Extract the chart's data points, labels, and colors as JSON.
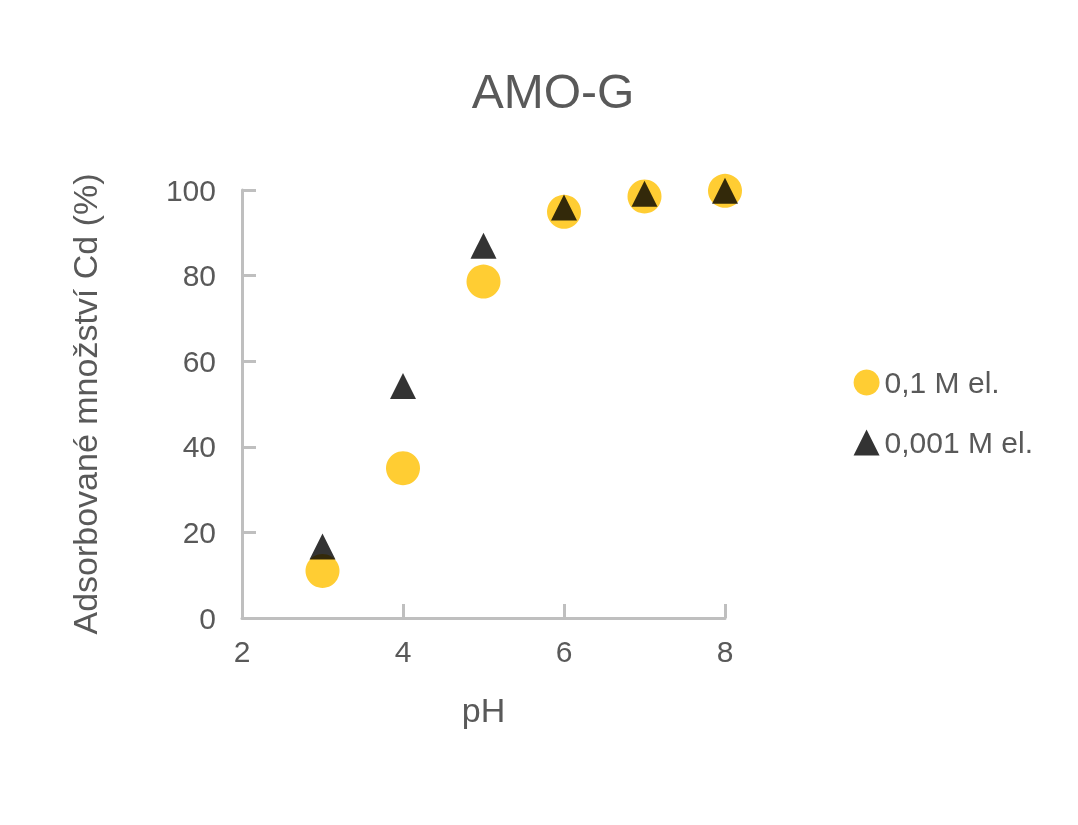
{
  "chart_data": {
    "type": "scatter",
    "title": "AMO-G",
    "xlabel": "pH",
    "ylabel": "Adsorbované množství Cd (%)",
    "x": [
      3,
      4,
      5,
      6,
      7,
      8
    ],
    "series": [
      {
        "name": "0,1 M el.",
        "color": "#ffc000",
        "marker": "circle",
        "values": [
          11,
          35,
          78.6,
          94.9,
          98.5,
          99.8
        ]
      },
      {
        "name": "0,001 M el.",
        "color": "#000000",
        "marker": "triangle",
        "values": [
          16.7,
          54.2,
          87,
          95.9,
          99.1,
          99.8
        ]
      }
    ],
    "xlim": [
      2,
      8
    ],
    "xticks": [
      2,
      4,
      6,
      8
    ],
    "ylim": [
      0,
      100
    ],
    "yticks": [
      0,
      20,
      40,
      60,
      80,
      100
    ],
    "grid": false,
    "legend": "right"
  }
}
